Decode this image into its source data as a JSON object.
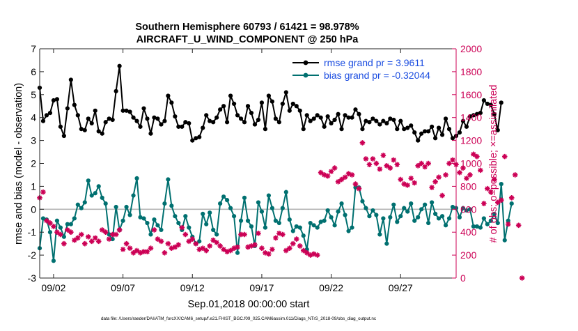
{
  "chart_data": {
    "type": "line",
    "title_line1": "Southern Hemisphere 60793 / 61421 = 98.978%",
    "title_line2": "AIRCRAFT_U_WIND_COMPONENT @ 250 hPa",
    "xlabel": "Sep.01,2018 00:00:00 start",
    "ylabel": "rmse and bias (model - observation)",
    "y2label": "# of obs: o=possible; ×=assimilated",
    "footer": "data file: /Users/raeder/DAI/ATM_forcXX/CAM6_setup/f.e21.FHIST_BGC.f09_025.CAM6assim.011/Diags_NTrS_2018-09/obs_diag_output.nc",
    "xlim": [
      1,
      31
    ],
    "ylim": [
      -3,
      7
    ],
    "y2lim": [
      0,
      2000
    ],
    "x_tick_values": [
      2,
      7,
      12,
      17,
      22,
      27
    ],
    "x_tick_labels": [
      "09/02",
      "09/07",
      "09/12",
      "09/17",
      "09/22",
      "09/27"
    ],
    "y_ticks": [
      -3,
      -2,
      -1,
      0,
      1,
      2,
      3,
      4,
      5,
      6,
      7
    ],
    "y2_ticks": [
      0,
      200,
      400,
      600,
      800,
      1000,
      1200,
      1400,
      1600,
      1800,
      2000
    ],
    "zero_line": 0,
    "x_start": 1.0,
    "x_step": 0.25,
    "legend": {
      "rmse": "rmse grand pr = 3.9611",
      "bias": "bias grand pr = -0.32044"
    },
    "series": [
      {
        "name": "rmse",
        "axis": "left",
        "color": "#000000",
        "values": [
          5.3,
          3.85,
          4.1,
          4.2,
          4.75,
          4.8,
          3.6,
          3.2,
          4.4,
          5.65,
          4.55,
          4.1,
          3.5,
          3.45,
          3.95,
          3.75,
          4.3,
          3.4,
          3.3,
          3.8,
          3.95,
          3.9,
          5.15,
          6.25,
          4.3,
          4.3,
          4.25,
          4.0,
          3.85,
          3.6,
          4.4,
          3.95,
          3.3,
          4.0,
          3.95,
          3.7,
          3.85,
          4.95,
          4.65,
          4.05,
          3.6,
          3.6,
          3.8,
          3.75,
          3.0,
          3.1,
          3.15,
          3.55,
          4.1,
          3.85,
          3.8,
          4.0,
          4.35,
          4.5,
          3.8,
          4.95,
          4.6,
          4.1,
          3.95,
          3.8,
          4.5,
          4.2,
          3.7,
          3.9,
          4.65,
          3.5,
          4.95,
          4.7,
          3.95,
          3.8,
          4.6,
          5.1,
          4.3,
          4.6,
          4.5,
          4.3,
          3.5,
          4.1,
          3.85,
          3.95,
          4.1,
          4.0,
          3.6,
          4.05,
          3.75,
          3.9,
          4.15,
          3.5,
          4.1,
          4.0,
          4.0,
          4.35,
          4.15,
          3.5,
          3.85,
          3.8,
          3.95,
          3.85,
          3.7,
          3.85,
          3.75,
          3.95,
          3.9,
          3.5,
          3.85,
          3.5,
          3.55,
          3.65,
          3.35,
          3.0,
          3.3,
          3.4,
          3.4,
          3.6,
          3.1,
          3.55,
          3.25,
          3.95,
          3.5,
          3.1,
          3.2,
          3.35,
          3.85,
          3.6,
          4.05,
          4.1,
          4.15,
          4.2,
          4.75,
          4.6,
          4.55,
          4.15,
          3.45,
          4.65
        ]
      },
      {
        "name": "bias",
        "axis": "left",
        "color": "#007070",
        "values": [
          -1.7,
          -0.4,
          -0.45,
          -1.0,
          -2.25,
          -0.5,
          -0.8,
          -1.2,
          -0.65,
          -0.65,
          -0.4,
          0.2,
          0.05,
          0.3,
          1.25,
          0.6,
          0.7,
          1.0,
          0.5,
          0.25,
          -1.1,
          -1.3,
          0.1,
          -0.9,
          -0.5,
          0.1,
          -0.25,
          0.6,
          1.35,
          -0.35,
          -0.4,
          -0.6,
          -1.1,
          -0.45,
          -0.7,
          -0.9,
          0.25,
          1.3,
          0.15,
          -0.3,
          -0.6,
          -0.9,
          -0.3,
          -0.8,
          -1.2,
          -1.5,
          -1.4,
          -0.2,
          -0.65,
          -0.15,
          -0.9,
          -1.1,
          0.25,
          0.55,
          0.4,
          0.05,
          -0.3,
          -1.9,
          -0.5,
          0.5,
          -0.5,
          -0.75,
          -1.6,
          0.3,
          -0.1,
          -0.8,
          0.6,
          0.05,
          -0.5,
          -0.6,
          0.05,
          0.75,
          -0.45,
          -0.95,
          -0.75,
          -0.8,
          -1.15,
          -1.75,
          -0.6,
          -0.7,
          -0.8,
          -0.55,
          -0.5,
          -0.05,
          -0.35,
          -0.7,
          -0.1,
          0.25,
          -0.25,
          -0.95,
          -0.8,
          0.95,
          0.95,
          0.35,
          0.05,
          -0.3,
          -0.05,
          -0.25,
          -1.1,
          -0.4,
          -1.5,
          -0.35,
          0.2,
          -0.55,
          -0.3,
          0.05,
          -0.1,
          0.25,
          -0.5,
          -0.35,
          0.0,
          0.2,
          -0.6,
          0.3,
          -0.2,
          -0.4,
          -0.3,
          -0.7,
          -0.4,
          0.1,
          0.05,
          -0.35,
          0.05,
          -0.05,
          0.0,
          -0.75,
          -0.75,
          -0.8,
          -0.4,
          -0.65,
          -0.5,
          -0.2,
          -0.6,
          1.1,
          -1.35,
          -0.5,
          0.25
        ]
      },
      {
        "name": "assimilated",
        "axis": "right",
        "color": "#cc0055",
        "values": [
          700,
          750,
          500,
          480,
          450,
          400,
          380,
          300,
          420,
          400,
          330,
          350,
          380,
          300,
          360,
          320,
          350,
          320,
          420,
          400,
          340,
          380,
          380,
          420,
          250,
          300,
          260,
          220,
          240,
          220,
          230,
          230,
          260,
          420,
          340,
          320,
          220,
          300,
          260,
          270,
          290,
          440,
          380,
          320,
          340,
          300,
          250,
          260,
          240,
          280,
          330,
          310,
          280,
          250,
          230,
          240,
          260,
          270,
          380,
          380,
          270,
          280,
          290,
          390,
          260,
          220,
          210,
          250,
          350,
          390,
          380,
          240,
          260,
          300,
          340,
          280,
          240,
          220,
          200,
          210,
          200,
          920,
          900,
          890,
          930,
          960,
          840,
          860,
          880,
          910,
          900,
          820,
          780,
          1180,
          1040,
          990,
          1040,
          1000,
          950,
          1070,
          980,
          960,
          1030,
          990,
          860,
          820,
          810,
          870,
          830,
          980,
          1000,
          970,
          1000,
          790,
          840,
          880,
          720,
          900,
          1000,
          1030,
          990,
          920,
          960,
          870,
          900,
          1080,
          1060,
          940,
          650,
          780,
          750,
          860,
          660,
          680,
          1060,
          470,
          700,
          900,
          460,
          0
        ]
      }
    ]
  }
}
